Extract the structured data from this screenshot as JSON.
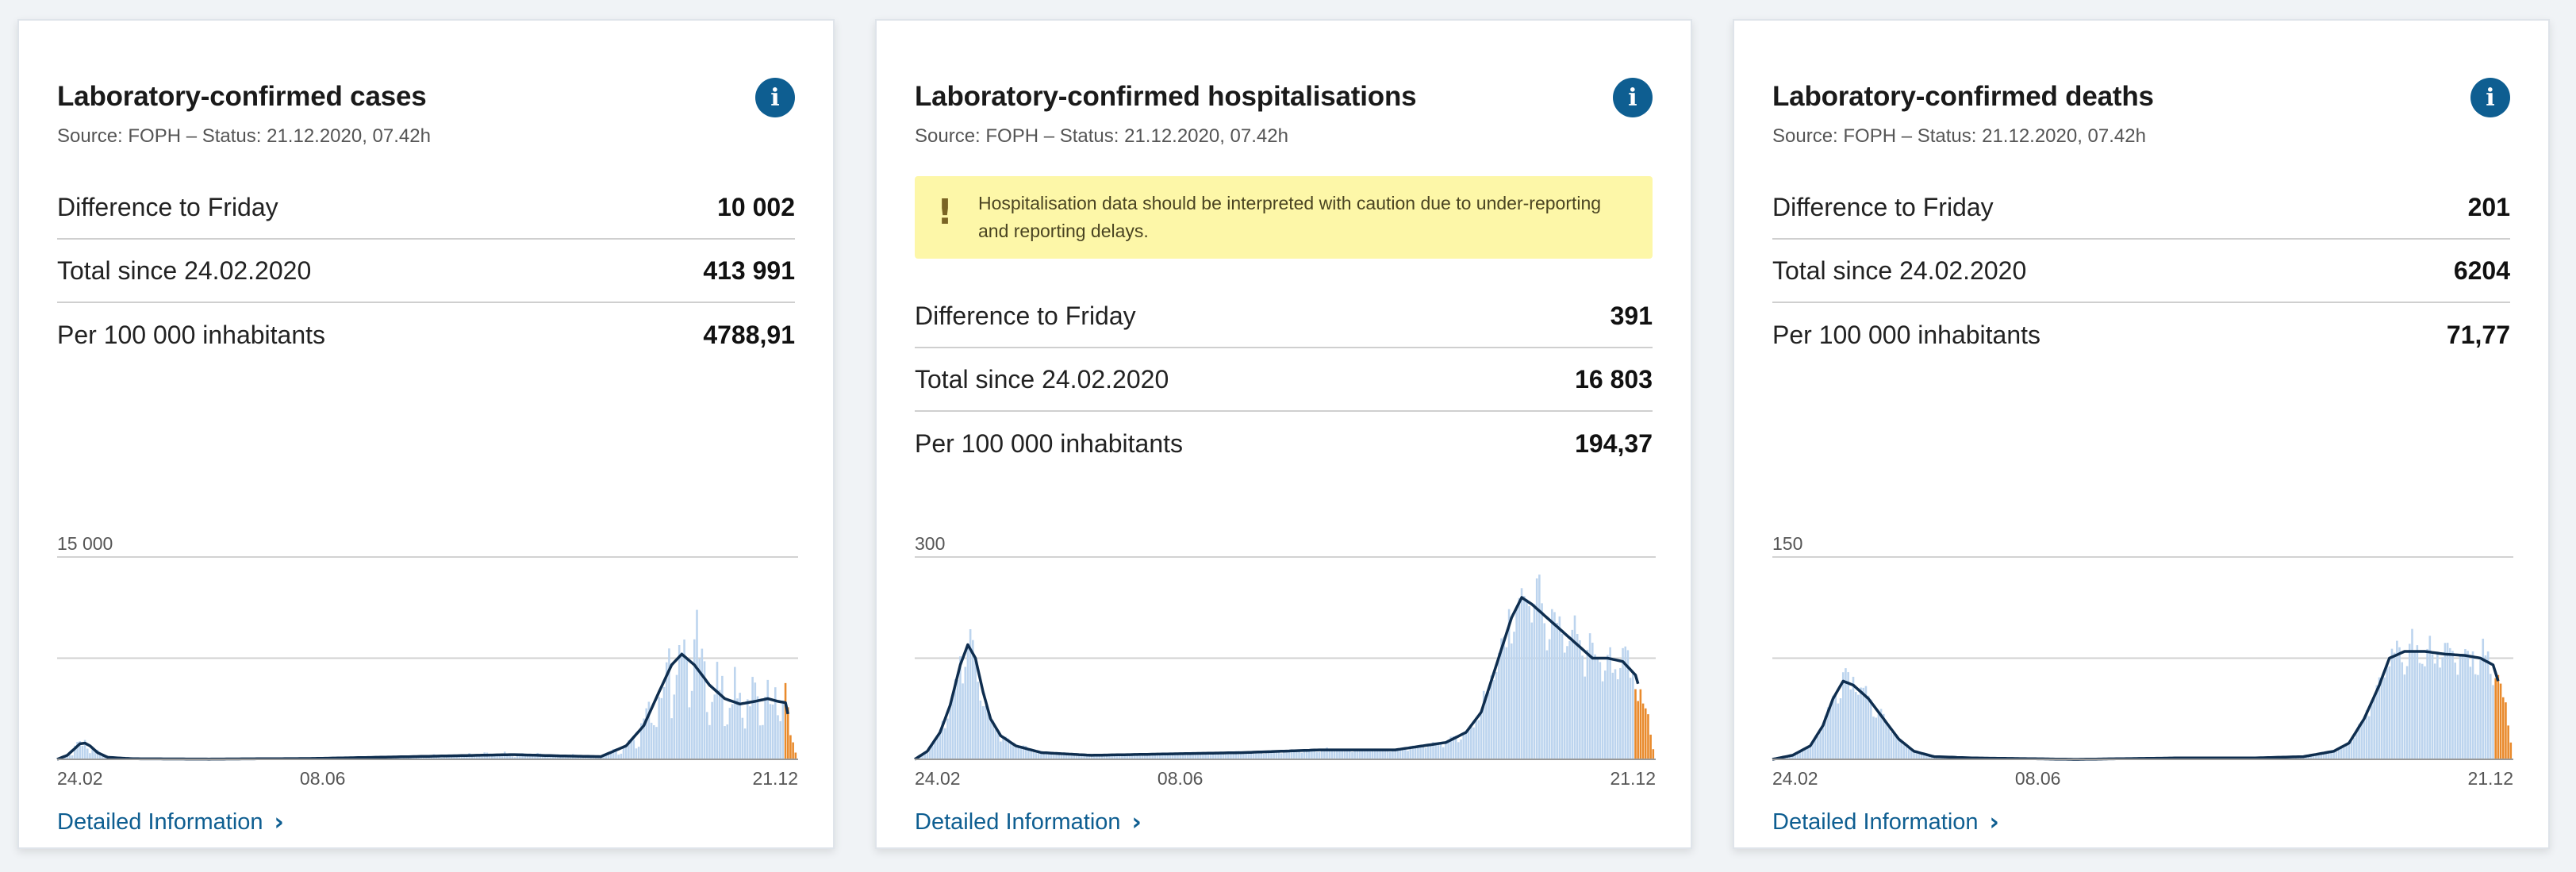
{
  "colors": {
    "bar": "#bcd4ee",
    "bar_recent": "#e98a2c",
    "line": "#0f2e4f",
    "accent": "#0e5e91",
    "warning_bg": "#fdf7a8"
  },
  "cards": [
    {
      "title": "Laboratory-confirmed cases",
      "source": "Source: FOPH – Status: 21.12.2020, 07.42h",
      "info_icon": "info-icon",
      "warning": "",
      "stats": [
        {
          "label": "Difference to Friday",
          "value": "10 002"
        },
        {
          "label": "Total since 24.02.2020",
          "value": "413 991"
        },
        {
          "label": "Per 100 000 inhabitants",
          "value": "4788,91"
        }
      ],
      "link_label": "Detailed Information",
      "chart_data": {
        "type": "bar",
        "title": "",
        "xlabel": "",
        "ylabel": "",
        "ymax_label": "15 000",
        "ylim": [
          0,
          15000
        ],
        "gridlines": [
          15000,
          7500,
          0
        ],
        "xtick_labels": [
          "24.02",
          "08.06",
          "21.12"
        ],
        "x_range": [
          "2020-02-24",
          "2020-12-21"
        ],
        "avg_anchors": [
          [
            0,
            0
          ],
          [
            4,
            300
          ],
          [
            7,
            800
          ],
          [
            9,
            1150
          ],
          [
            11,
            1200
          ],
          [
            13,
            1000
          ],
          [
            16,
            500
          ],
          [
            20,
            150
          ],
          [
            30,
            40
          ],
          [
            60,
            20
          ],
          [
            100,
            60
          ],
          [
            140,
            200
          ],
          [
            180,
            350
          ],
          [
            200,
            250
          ],
          [
            215,
            200
          ],
          [
            225,
            1000
          ],
          [
            232,
            2500
          ],
          [
            238,
            5000
          ],
          [
            243,
            7000
          ],
          [
            247,
            7800
          ],
          [
            252,
            7000
          ],
          [
            258,
            5500
          ],
          [
            264,
            4500
          ],
          [
            270,
            4100
          ],
          [
            276,
            4300
          ],
          [
            281,
            4500
          ],
          [
            285,
            4300
          ],
          [
            288,
            4200
          ],
          [
            293,
            0
          ]
        ],
        "bar_noise": 0.35,
        "bar_spikes": 0.25,
        "recent_bars": 6
      }
    },
    {
      "title": "Laboratory-confirmed hospitalisations",
      "source": "Source: FOPH – Status: 21.12.2020, 07.42h",
      "info_icon": "info-icon",
      "warning": "Hospitalisation data should be interpreted with caution due to under-reporting and reporting delays.",
      "stats": [
        {
          "label": "Difference to Friday",
          "value": "391"
        },
        {
          "label": "Total since 24.02.2020",
          "value": "16 803"
        },
        {
          "label": "Per 100 000 inhabitants",
          "value": "194,37"
        }
      ],
      "link_label": "Detailed Information",
      "chart_data": {
        "type": "bar",
        "title": "",
        "xlabel": "",
        "ylabel": "",
        "ymax_label": "300",
        "ylim": [
          0,
          300
        ],
        "gridlines": [
          300,
          150,
          0
        ],
        "xtick_labels": [
          "24.02",
          "08.06",
          "21.12"
        ],
        "x_range": [
          "2020-02-24",
          "2020-12-21"
        ],
        "avg_anchors": [
          [
            0,
            0
          ],
          [
            5,
            12
          ],
          [
            10,
            40
          ],
          [
            14,
            80
          ],
          [
            18,
            140
          ],
          [
            21,
            170
          ],
          [
            24,
            150
          ],
          [
            27,
            100
          ],
          [
            30,
            60
          ],
          [
            34,
            35
          ],
          [
            40,
            20
          ],
          [
            50,
            10
          ],
          [
            70,
            6
          ],
          [
            100,
            8
          ],
          [
            130,
            10
          ],
          [
            160,
            14
          ],
          [
            190,
            14
          ],
          [
            210,
            25
          ],
          [
            218,
            40
          ],
          [
            224,
            70
          ],
          [
            230,
            140
          ],
          [
            236,
            210
          ],
          [
            240,
            240
          ],
          [
            244,
            230
          ],
          [
            250,
            210
          ],
          [
            256,
            190
          ],
          [
            262,
            170
          ],
          [
            268,
            150
          ],
          [
            274,
            150
          ],
          [
            280,
            145
          ],
          [
            285,
            125
          ],
          [
            290,
            60
          ],
          [
            293,
            0
          ]
        ],
        "bar_noise": 0.14,
        "bar_spikes": 0.1,
        "recent_bars": 9
      }
    },
    {
      "title": "Laboratory-confirmed deaths",
      "source": "Source: FOPH – Status: 21.12.2020, 07.42h",
      "info_icon": "info-icon",
      "warning": "",
      "stats": [
        {
          "label": "Difference to Friday",
          "value": "201"
        },
        {
          "label": "Total since 24.02.2020",
          "value": "6204"
        },
        {
          "label": "Per 100 000 inhabitants",
          "value": "71,77"
        }
      ],
      "link_label": "Detailed Information",
      "chart_data": {
        "type": "bar",
        "title": "",
        "xlabel": "",
        "ylabel": "",
        "ymax_label": "150",
        "ylim": [
          0,
          150
        ],
        "gridlines": [
          150,
          75,
          0
        ],
        "xtick_labels": [
          "24.02",
          "08.06",
          "21.12"
        ],
        "x_range": [
          "2020-02-24",
          "2020-12-21"
        ],
        "avg_anchors": [
          [
            0,
            0
          ],
          [
            8,
            3
          ],
          [
            15,
            10
          ],
          [
            20,
            25
          ],
          [
            24,
            45
          ],
          [
            28,
            58
          ],
          [
            32,
            55
          ],
          [
            38,
            45
          ],
          [
            44,
            30
          ],
          [
            50,
            15
          ],
          [
            56,
            6
          ],
          [
            64,
            2
          ],
          [
            80,
            1
          ],
          [
            120,
            0
          ],
          [
            160,
            1
          ],
          [
            190,
            1
          ],
          [
            210,
            2
          ],
          [
            222,
            6
          ],
          [
            228,
            12
          ],
          [
            234,
            30
          ],
          [
            240,
            55
          ],
          [
            244,
            75
          ],
          [
            250,
            80
          ],
          [
            258,
            80
          ],
          [
            266,
            78
          ],
          [
            274,
            77
          ],
          [
            280,
            75
          ],
          [
            285,
            70
          ],
          [
            290,
            40
          ],
          [
            293,
            0
          ]
        ],
        "bar_noise": 0.12,
        "bar_spikes": 0.08,
        "recent_bars": 8
      }
    }
  ]
}
